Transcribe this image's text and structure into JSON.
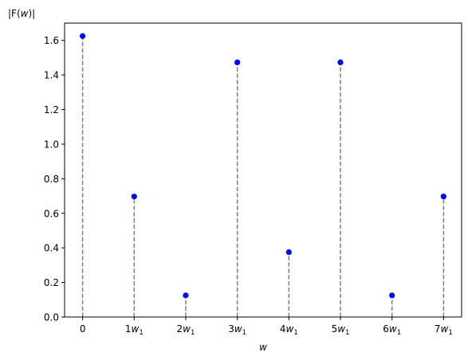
{
  "chart_data": {
    "type": "stem",
    "ylabel": "|F(w)|",
    "xlabel": "w",
    "x": [
      0,
      1,
      2,
      3,
      4,
      5,
      6,
      7
    ],
    "x_tick_labels": [
      {
        "base": "0",
        "sub": ""
      },
      {
        "base": "1w",
        "sub": "1"
      },
      {
        "base": "2w",
        "sub": "1"
      },
      {
        "base": "3w",
        "sub": "1"
      },
      {
        "base": "4w",
        "sub": "1"
      },
      {
        "base": "5w",
        "sub": "1"
      },
      {
        "base": "6w",
        "sub": "1"
      },
      {
        "base": "7w",
        "sub": "1"
      }
    ],
    "values": [
      1.625,
      0.697,
      0.125,
      1.473,
      0.375,
      1.473,
      0.125,
      0.697
    ],
    "ylim": [
      0,
      1.7
    ],
    "xlim": [
      -0.35,
      7.35
    ],
    "yticks": [
      0.0,
      0.2,
      0.4,
      0.6,
      0.8,
      1.0,
      1.2,
      1.4,
      1.6
    ],
    "ytick_labels": [
      "0.0",
      "0.2",
      "0.4",
      "0.6",
      "0.8",
      "1.0",
      "1.2",
      "1.4",
      "1.6"
    ],
    "grid": false,
    "colors": {
      "marker": "#0000ff",
      "stem": "#808080",
      "axes": "#000000"
    }
  }
}
